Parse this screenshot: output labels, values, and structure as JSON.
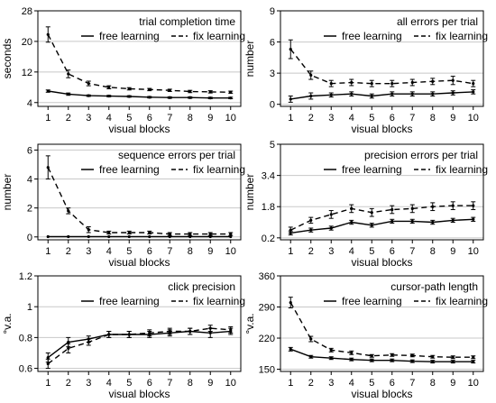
{
  "legend": {
    "free_label": "free learning",
    "fix_label": "fix learning"
  },
  "chart_data": [
    {
      "type": "line",
      "title": "trial completion time",
      "xlabel": "visual blocks",
      "ylabel": "seconds",
      "x": [
        1,
        2,
        3,
        4,
        5,
        6,
        7,
        8,
        9,
        10
      ],
      "ylim": [
        3,
        28
      ],
      "yticks": [
        4,
        12,
        20,
        28
      ],
      "grid": "horizontal",
      "legend_position": "top",
      "series": [
        {
          "name": "free learning",
          "style": "solid",
          "values": [
            7.0,
            6.2,
            5.8,
            5.7,
            5.6,
            5.4,
            5.3,
            5.3,
            5.2,
            5.2
          ],
          "err": [
            0.3,
            0.3,
            0.2,
            0.2,
            0.2,
            0.2,
            0.2,
            0.2,
            0.2,
            0.2
          ]
        },
        {
          "name": "fix learning",
          "style": "dashed",
          "values": [
            21.8,
            11.5,
            9.0,
            8.0,
            7.6,
            7.4,
            7.2,
            6.9,
            6.8,
            6.7
          ],
          "err": [
            2.0,
            1.0,
            0.6,
            0.4,
            0.3,
            0.3,
            0.3,
            0.3,
            0.3,
            0.3
          ]
        }
      ]
    },
    {
      "type": "line",
      "title": "all errors per trial",
      "xlabel": "visual blocks",
      "ylabel": "number",
      "x": [
        1,
        2,
        3,
        4,
        5,
        6,
        7,
        8,
        9,
        10
      ],
      "ylim": [
        -0.2,
        9
      ],
      "yticks": [
        0,
        3,
        6,
        9
      ],
      "grid": "horizontal",
      "legend_position": "top",
      "series": [
        {
          "name": "free learning",
          "style": "solid",
          "values": [
            0.5,
            0.8,
            0.9,
            1.0,
            0.8,
            1.0,
            1.0,
            1.0,
            1.1,
            1.2
          ],
          "err": [
            0.3,
            0.3,
            0.2,
            0.2,
            0.2,
            0.2,
            0.2,
            0.2,
            0.2,
            0.2
          ]
        },
        {
          "name": "fix learning",
          "style": "dashed",
          "values": [
            5.3,
            2.8,
            2.0,
            2.1,
            2.0,
            2.0,
            2.1,
            2.2,
            2.3,
            2.0
          ],
          "err": [
            0.9,
            0.4,
            0.3,
            0.3,
            0.3,
            0.3,
            0.3,
            0.3,
            0.4,
            0.3
          ]
        }
      ]
    },
    {
      "type": "line",
      "title": "sequence errors per trial",
      "xlabel": "visual blocks",
      "ylabel": "number",
      "x": [
        1,
        2,
        3,
        4,
        5,
        6,
        7,
        8,
        9,
        10
      ],
      "ylim": [
        -0.2,
        6.4
      ],
      "yticks": [
        0,
        2,
        4,
        6
      ],
      "grid": "horizontal",
      "legend_position": "top",
      "series": [
        {
          "name": "free learning",
          "style": "solid",
          "values": [
            0.02,
            0.02,
            0.02,
            0.02,
            0.02,
            0.02,
            0.02,
            0.02,
            0.02,
            0.02
          ],
          "err": [
            0,
            0,
            0,
            0,
            0,
            0,
            0,
            0,
            0,
            0
          ]
        },
        {
          "name": "fix learning",
          "style": "dashed",
          "values": [
            4.8,
            1.8,
            0.5,
            0.3,
            0.3,
            0.3,
            0.2,
            0.2,
            0.2,
            0.2
          ],
          "err": [
            0.8,
            0.2,
            0.2,
            0.1,
            0.1,
            0.1,
            0.1,
            0.1,
            0.1,
            0.1
          ]
        }
      ]
    },
    {
      "type": "line",
      "title": "precision errors per trial",
      "xlabel": "visual blocks",
      "ylabel": "number",
      "x": [
        1,
        2,
        3,
        4,
        5,
        6,
        7,
        8,
        9,
        10
      ],
      "ylim": [
        0.1,
        5.0
      ],
      "yticks": [
        0.2,
        1.8,
        3.4,
        5.0
      ],
      "grid": "horizontal",
      "legend_position": "top",
      "series": [
        {
          "name": "free learning",
          "style": "solid",
          "values": [
            0.45,
            0.6,
            0.7,
            1.0,
            0.85,
            1.05,
            1.05,
            1.0,
            1.1,
            1.15
          ],
          "err": [
            0.1,
            0.1,
            0.1,
            0.1,
            0.1,
            0.1,
            0.1,
            0.1,
            0.1,
            0.1
          ]
        },
        {
          "name": "fix learning",
          "style": "dashed",
          "values": [
            0.6,
            1.1,
            1.4,
            1.7,
            1.5,
            1.65,
            1.7,
            1.8,
            1.85,
            1.85
          ],
          "err": [
            0.15,
            0.15,
            0.2,
            0.2,
            0.2,
            0.2,
            0.2,
            0.2,
            0.2,
            0.2
          ]
        }
      ]
    },
    {
      "type": "line",
      "title": "click precision",
      "xlabel": "visual blocks",
      "ylabel": "°v.a.",
      "x": [
        1,
        2,
        3,
        4,
        5,
        6,
        7,
        8,
        9,
        10
      ],
      "ylim": [
        0.58,
        1.2
      ],
      "yticks": [
        0.6,
        0.8,
        1.0,
        1.2
      ],
      "grid": "horizontal",
      "legend_position": "top",
      "series": [
        {
          "name": "free learning",
          "style": "solid",
          "values": [
            0.67,
            0.77,
            0.79,
            0.82,
            0.82,
            0.82,
            0.83,
            0.84,
            0.83,
            0.84
          ],
          "err": [
            0.03,
            0.03,
            0.02,
            0.02,
            0.02,
            0.02,
            0.02,
            0.02,
            0.03,
            0.02
          ]
        },
        {
          "name": "fix learning",
          "style": "dashed",
          "values": [
            0.63,
            0.73,
            0.77,
            0.82,
            0.82,
            0.83,
            0.84,
            0.84,
            0.86,
            0.85
          ],
          "err": [
            0.03,
            0.03,
            0.02,
            0.02,
            0.02,
            0.02,
            0.02,
            0.02,
            0.02,
            0.02
          ]
        }
      ]
    },
    {
      "type": "line",
      "title": "cursor-path length",
      "xlabel": "visual blocks",
      "ylabel": "°v.a.",
      "x": [
        1,
        2,
        3,
        4,
        5,
        6,
        7,
        8,
        9,
        10
      ],
      "ylim": [
        145,
        360
      ],
      "yticks": [
        150,
        220,
        290,
        360
      ],
      "grid": "horizontal",
      "legend_position": "top",
      "series": [
        {
          "name": "free learning",
          "style": "solid",
          "values": [
            195,
            178,
            175,
            172,
            170,
            170,
            168,
            167,
            167,
            167
          ],
          "err": [
            4,
            3,
            3,
            3,
            3,
            3,
            3,
            3,
            3,
            3
          ]
        },
        {
          "name": "fix learning",
          "style": "dashed",
          "values": [
            300,
            218,
            193,
            187,
            180,
            182,
            181,
            178,
            177,
            177
          ],
          "err": [
            12,
            6,
            4,
            4,
            3,
            3,
            3,
            3,
            3,
            3
          ]
        }
      ]
    }
  ]
}
